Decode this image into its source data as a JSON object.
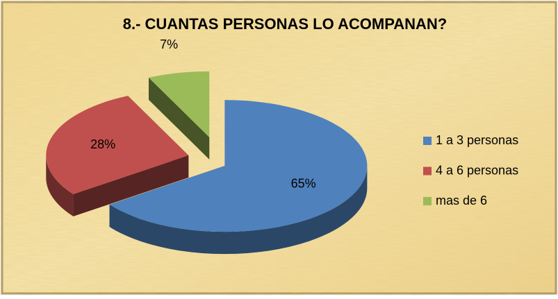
{
  "chart_data": {
    "type": "pie",
    "title": "8.- CUANTAS PERSONAS LO ACOMPANAN?",
    "categories": [
      "1 a 3 personas",
      "4 a 6 personas",
      "mas de 6"
    ],
    "values": [
      65,
      28,
      7
    ],
    "value_labels": [
      "65%",
      "28%",
      "7%"
    ],
    "colors": [
      "#4f81bd",
      "#c0504d",
      "#9bbb59"
    ],
    "legend": "right"
  }
}
